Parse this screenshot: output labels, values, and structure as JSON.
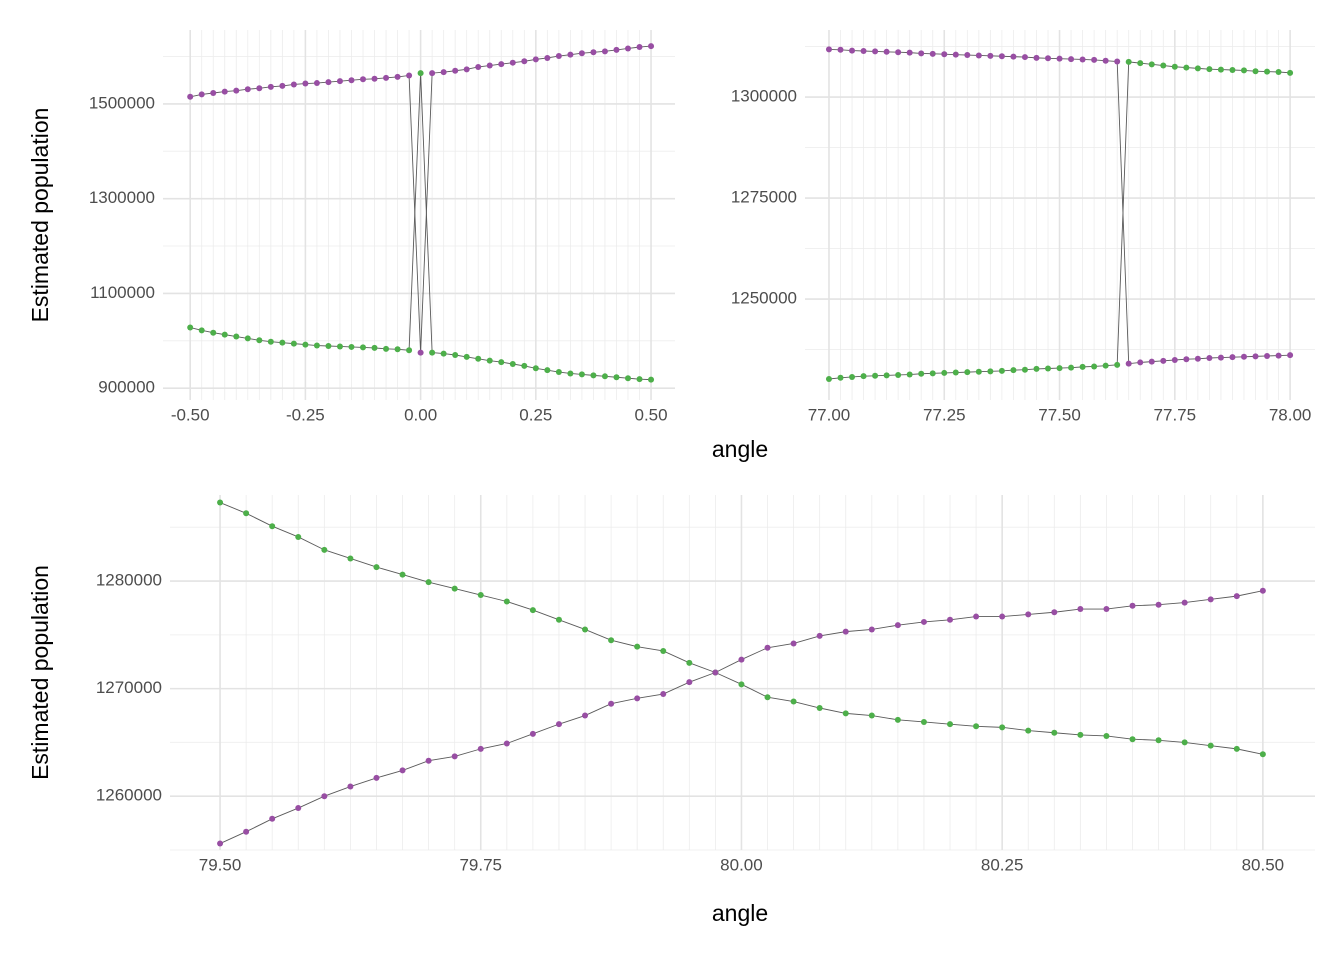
{
  "chart_data": [
    {
      "type": "line",
      "ylabel": "Estimated population",
      "x": [
        -0.5,
        -0.475,
        -0.45,
        -0.425,
        -0.4,
        -0.375,
        -0.35,
        -0.325,
        -0.3,
        -0.275,
        -0.25,
        -0.225,
        -0.2,
        -0.175,
        -0.15,
        -0.125,
        -0.1,
        -0.075,
        -0.05,
        -0.025,
        0,
        0.025,
        0.05,
        0.075,
        0.1,
        0.125,
        0.15,
        0.175,
        0.2,
        0.225,
        0.25,
        0.275,
        0.3,
        0.325,
        0.35,
        0.375,
        0.4,
        0.425,
        0.45,
        0.475,
        0.5
      ],
      "xlim": [
        -0.559,
        0.552
      ],
      "xticks": [
        {
          "value": -0.5,
          "label": "-0.50"
        },
        {
          "value": -0.25,
          "label": "-0.25"
        },
        {
          "value": 0,
          "label": "0.00"
        },
        {
          "value": 0.25,
          "label": "0.25"
        },
        {
          "value": 0.5,
          "label": "0.50"
        }
      ],
      "ylim": [
        875000,
        1656000
      ],
      "yticks": [
        900000,
        1100000,
        1300000,
        1500000
      ],
      "grid": true,
      "series": [
        {
          "color": "#4daf4a",
          "values": [
            1028000,
            1022000,
            1017000,
            1013000,
            1009000,
            1005000,
            1001000,
            998000,
            996000,
            994000,
            992000,
            990000,
            989000,
            988000,
            987000,
            986000,
            985000,
            983000,
            982000,
            980000,
            1565000,
            975000,
            973000,
            970000,
            966000,
            962000,
            958000,
            955000,
            951000,
            947000,
            942000,
            938000,
            934000,
            931000,
            929000,
            927000,
            925000,
            923000,
            921000,
            919000,
            918000
          ]
        },
        {
          "color": "#984ea3",
          "values": [
            1515000,
            1520000,
            1523000,
            1526000,
            1528000,
            1531000,
            1533000,
            1536000,
            1538000,
            1541000,
            1543000,
            1544000,
            1546000,
            1548000,
            1550000,
            1552000,
            1553000,
            1555000,
            1557000,
            1560000,
            975000,
            1565000,
            1567000,
            1570000,
            1573000,
            1578000,
            1581000,
            1584000,
            1587000,
            1590000,
            1594000,
            1597000,
            1601000,
            1604000,
            1607000,
            1609000,
            1611000,
            1614000,
            1617000,
            1620000,
            1622000
          ]
        }
      ]
    },
    {
      "type": "line",
      "xlabel": "angle",
      "x": [
        77,
        77.025,
        77.05,
        77.075,
        77.1,
        77.125,
        77.15,
        77.175,
        77.2,
        77.225,
        77.25,
        77.275,
        77.3,
        77.325,
        77.35,
        77.375,
        77.4,
        77.425,
        77.45,
        77.475,
        77.5,
        77.525,
        77.55,
        77.575,
        77.6,
        77.625,
        77.65,
        77.675,
        77.7,
        77.725,
        77.75,
        77.775,
        77.8,
        77.825,
        77.85,
        77.875,
        77.9,
        77.925,
        77.95,
        77.975,
        78
      ],
      "xlim": [
        76.948,
        78.054
      ],
      "xticks": [
        {
          "value": 77,
          "label": "77.00"
        },
        {
          "value": 77.25,
          "label": "77.25"
        },
        {
          "value": 77.5,
          "label": "77.50"
        },
        {
          "value": 77.75,
          "label": "77.75"
        },
        {
          "value": 78,
          "label": "78.00"
        }
      ],
      "ylim": [
        1225000,
        1316600
      ],
      "yticks": [
        1250000,
        1275000,
        1300000
      ],
      "grid": true,
      "series": [
        {
          "color": "#4daf4a",
          "values": [
            1230200,
            1230500,
            1230700,
            1230900,
            1231000,
            1231100,
            1231200,
            1231300,
            1231500,
            1231600,
            1231700,
            1231800,
            1231900,
            1232000,
            1232100,
            1232200,
            1232400,
            1232500,
            1232700,
            1232800,
            1232900,
            1233000,
            1233200,
            1233300,
            1233500,
            1233700,
            1308700,
            1308400,
            1308100,
            1307800,
            1307500,
            1307300,
            1307100,
            1306900,
            1306800,
            1306700,
            1306600,
            1306400,
            1306300,
            1306200,
            1306000
          ]
        },
        {
          "color": "#984ea3",
          "values": [
            1311800,
            1311700,
            1311500,
            1311400,
            1311300,
            1311200,
            1311100,
            1311000,
            1310800,
            1310700,
            1310600,
            1310500,
            1310400,
            1310300,
            1310200,
            1310100,
            1310000,
            1309900,
            1309700,
            1309600,
            1309500,
            1309400,
            1309300,
            1309200,
            1309000,
            1308800,
            1234000,
            1234300,
            1234500,
            1234700,
            1234900,
            1235100,
            1235200,
            1235400,
            1235500,
            1235600,
            1235700,
            1235800,
            1235900,
            1236000,
            1236100
          ]
        }
      ]
    },
    {
      "type": "line",
      "xlabel": "angle",
      "ylabel": "Estimated population",
      "x": [
        79.5,
        79.525,
        79.55,
        79.575,
        79.6,
        79.625,
        79.65,
        79.675,
        79.7,
        79.725,
        79.75,
        79.775,
        79.8,
        79.825,
        79.85,
        79.875,
        79.9,
        79.925,
        79.95,
        79.975,
        80,
        80.025,
        80.05,
        80.075,
        80.1,
        80.125,
        80.15,
        80.175,
        80.2,
        80.225,
        80.25,
        80.275,
        80.3,
        80.325,
        80.35,
        80.375,
        80.4,
        80.425,
        80.45,
        80.475,
        80.5
      ],
      "xlim": [
        79.452,
        80.55
      ],
      "xticks": [
        {
          "value": 79.5,
          "label": "79.50"
        },
        {
          "value": 79.75,
          "label": "79.75"
        },
        {
          "value": 80,
          "label": "80.00"
        },
        {
          "value": 80.25,
          "label": "80.25"
        },
        {
          "value": 80.5,
          "label": "80.50"
        }
      ],
      "ylim": [
        1255000,
        1288000
      ],
      "yticks": [
        1260000,
        1270000,
        1280000
      ],
      "grid": true,
      "series": [
        {
          "color": "#4daf4a",
          "values": [
            1287300,
            1286300,
            1285100,
            1284100,
            1282900,
            1282100,
            1281300,
            1280600,
            1279900,
            1279300,
            1278700,
            1278100,
            1277300,
            1276400,
            1275500,
            1274500,
            1273900,
            1273500,
            1272400,
            1271500,
            1270400,
            1269200,
            1268800,
            1268200,
            1267700,
            1267500,
            1267100,
            1266900,
            1266700,
            1266500,
            1266400,
            1266100,
            1265900,
            1265700,
            1265600,
            1265300,
            1265200,
            1265000,
            1264700,
            1264400,
            1263900
          ]
        },
        {
          "color": "#984ea3",
          "values": [
            1255600,
            1256700,
            1257900,
            1258900,
            1260000,
            1260900,
            1261700,
            1262400,
            1263300,
            1263700,
            1264400,
            1264900,
            1265800,
            1266700,
            1267500,
            1268600,
            1269100,
            1269500,
            1270600,
            1271500,
            1272700,
            1273800,
            1274200,
            1274900,
            1275300,
            1275500,
            1275900,
            1276200,
            1276400,
            1276700,
            1276700,
            1276900,
            1277100,
            1277400,
            1277400,
            1277700,
            1277800,
            1278000,
            1278300,
            1278600,
            1279100
          ]
        }
      ]
    }
  ]
}
